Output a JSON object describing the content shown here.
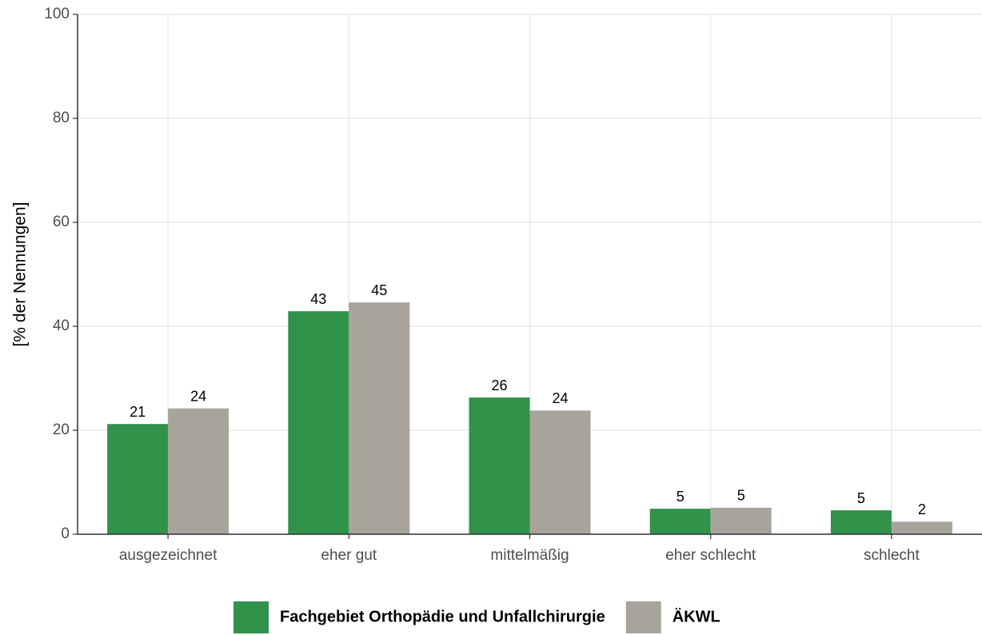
{
  "chart_data": {
    "type": "bar",
    "y_label": "[% der Nennungen]",
    "categories": [
      "ausgezeichnet",
      "eher gut",
      "mittelmäßig",
      "eher schlecht",
      "schlecht"
    ],
    "series": [
      {
        "name": "Fachgebiet Orthopädie und Unfallchirurgie",
        "color": "#31934a",
        "values": [
          21.2,
          42.9,
          26.3,
          4.9,
          4.6
        ],
        "value_labels": [
          "21",
          "43",
          "26",
          "5",
          "5"
        ]
      },
      {
        "name": "ÄKWL",
        "color": "#a8a49c",
        "values": [
          24.2,
          44.6,
          23.8,
          5.1,
          2.4
        ],
        "value_labels": [
          "24",
          "45",
          "24",
          "5",
          "2"
        ]
      }
    ],
    "ylim": [
      0,
      100
    ],
    "yticks": [
      0,
      20,
      40,
      60,
      80,
      100
    ],
    "grid": true,
    "legend": "bottom"
  }
}
